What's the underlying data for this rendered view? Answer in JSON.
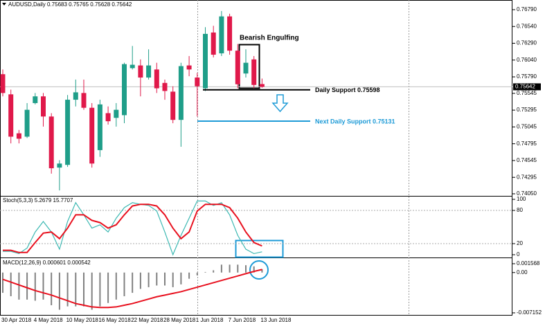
{
  "chart_data": [
    {
      "type": "candlestick",
      "title": "AUDUSD,Daily 0.75683 0.75765 0.75628 0.75642",
      "categories": [
        "30 Apr 2018",
        null,
        null,
        null,
        "4 May 2018",
        null,
        null,
        null,
        "10 May 2018",
        null,
        null,
        null,
        "16 May 2018",
        null,
        null,
        null,
        "22 May 2018",
        null,
        null,
        null,
        "28 May 2018",
        null,
        null,
        null,
        "1 Jun 2018",
        null,
        null,
        null,
        "7 Jun 2018",
        null,
        null,
        null,
        "13 Jun 2018"
      ],
      "open": [
        0.7583,
        0.7553,
        0.7495,
        0.749,
        0.754,
        0.755,
        0.752,
        0.7444,
        0.7448,
        0.7545,
        0.7555,
        0.7533,
        0.747,
        0.7525,
        0.7518,
        0.7522,
        0.7592,
        0.7596,
        0.7578,
        0.759,
        0.757,
        0.7557,
        0.7515,
        0.7596,
        0.7578,
        0.7562,
        0.7645,
        0.7614,
        0.7669,
        0.7618,
        0.7584,
        0.7605,
        0.75683
      ],
      "high": [
        0.759,
        0.756,
        0.75,
        0.754,
        0.7555,
        0.7555,
        0.7525,
        0.7455,
        0.7552,
        0.7575,
        0.7575,
        0.754,
        0.7545,
        0.7535,
        0.754,
        0.76,
        0.7625,
        0.7605,
        0.762,
        0.76,
        0.7575,
        0.7565,
        0.76,
        0.761,
        0.7585,
        0.7653,
        0.7655,
        0.7677,
        0.7673,
        0.7628,
        0.762,
        0.761,
        0.75765
      ],
      "low": [
        0.755,
        0.748,
        0.748,
        0.7488,
        0.7538,
        0.7505,
        0.7435,
        0.741,
        0.7445,
        0.7535,
        0.753,
        0.7444,
        0.746,
        0.7508,
        0.7505,
        0.751,
        0.759,
        0.755,
        0.7575,
        0.7555,
        0.7545,
        0.751,
        0.7475,
        0.758,
        0.752,
        0.7558,
        0.7608,
        0.761,
        0.7612,
        0.7562,
        0.7578,
        0.7562,
        0.75628
      ],
      "close": [
        0.7555,
        0.749,
        0.7487,
        0.753,
        0.755,
        0.752,
        0.7443,
        0.745,
        0.7545,
        0.7556,
        0.7533,
        0.745,
        0.7538,
        0.7513,
        0.753,
        0.7598,
        0.7597,
        0.7578,
        0.7596,
        0.7562,
        0.7558,
        0.7515,
        0.7595,
        0.759,
        0.7565,
        0.7643,
        0.7612,
        0.7669,
        0.7618,
        0.7568,
        0.76,
        0.7567,
        0.75642
      ],
      "up_color": "#1f9e89",
      "down_color": "#e0194a",
      "ylim": [
        0.74019,
        0.76934
      ],
      "yticks": [
        {
          "value": 0.7679,
          "label": "0.76790"
        },
        {
          "value": 0.7654,
          "label": "0.76540"
        },
        {
          "value": 0.7629,
          "label": "0.76290"
        },
        {
          "value": 0.7604,
          "label": "0.76040"
        },
        {
          "value": 0.7579,
          "label": "0.75790"
        },
        {
          "value": 0.75545,
          "label": "0.75545"
        },
        {
          "value": 0.75295,
          "label": "0.75295"
        },
        {
          "value": 0.75045,
          "label": "0.75045"
        },
        {
          "value": 0.74795,
          "label": "0.74795"
        },
        {
          "value": 0.74545,
          "label": "0.74545"
        },
        {
          "value": 0.74295,
          "label": "0.74295"
        },
        {
          "value": 0.7405,
          "label": "0.74050"
        }
      ],
      "last_price": 0.75642,
      "annotations": [
        {
          "text": "Bearish Engulfing"
        }
      ],
      "levels": [
        {
          "text": "Daily Support 0.75598",
          "value": 0.75598,
          "color": "#000000"
        },
        {
          "text": "Next Daily Support 0.75131",
          "value": 0.75131,
          "color": "#1e9bd7"
        }
      ]
    },
    {
      "type": "line",
      "title": "Stoch(5,3,3) 5.2679 15.7707",
      "series": [
        {
          "color": "#3cb8b2",
          "values": [
            6,
            6,
            2,
            12,
            41,
            60,
            41,
            10,
            60,
            94,
            72,
            48,
            54,
            41,
            66,
            85,
            94,
            91,
            89,
            79,
            41,
            0,
            35,
            66,
            97,
            97,
            89,
            94,
            72,
            35,
            10,
            2,
            5.2679
          ]
        },
        {
          "color": "#e8101e",
          "values": [
            8,
            8,
            4,
            4,
            22,
            39,
            41,
            29,
            48,
            72,
            72,
            62,
            58,
            48,
            54,
            72,
            88,
            91,
            91,
            88,
            72,
            48,
            29,
            41,
            79,
            91,
            91,
            91,
            85,
            66,
            41,
            22,
            15.7707
          ]
        }
      ],
      "ylim": [
        0,
        100
      ],
      "yticks": [
        0,
        20,
        80,
        100
      ],
      "levels": [
        20,
        80
      ]
    },
    {
      "type": "macd",
      "title": "MACD(12,26,9) 0.000601 0.000542",
      "series": [
        {
          "color": "#808080",
          "values": [
            -0.0036,
            -0.0042,
            -0.0048,
            -0.0048,
            -0.005,
            -0.0048,
            -0.0058,
            -0.0066,
            -0.006,
            -0.006,
            -0.006,
            -0.0066,
            -0.006,
            -0.0054,
            -0.0048,
            -0.0042,
            -0.0036,
            -0.0029,
            -0.0026,
            -0.0023,
            -0.0023,
            -0.0026,
            -0.0021,
            -0.0011,
            -0.0005,
            0.0001,
            0.0004,
            0.0014,
            0.0014,
            0.0014,
            0.0013,
            0.0011,
            0.000601
          ]
        },
        {
          "color": "#e8101e",
          "values": [
            -0.0012,
            -0.0017,
            -0.0022,
            -0.0027,
            -0.0032,
            -0.0036,
            -0.004,
            -0.0045,
            -0.005,
            -0.0055,
            -0.0058,
            -0.0061,
            -0.0062,
            -0.0062,
            -0.0061,
            -0.0058,
            -0.0055,
            -0.0051,
            -0.0047,
            -0.0043,
            -0.004,
            -0.0037,
            -0.0034,
            -0.003,
            -0.0026,
            -0.0022,
            -0.0018,
            -0.0014,
            -0.001,
            -0.0006,
            -0.0002,
            0.0002,
            0.000542
          ]
        }
      ],
      "ylim": [
        -0.007152,
        0.001568
      ],
      "yticks": [
        0.001568,
        {
          "value": 0,
          "label": "0.00"
        },
        -0.007152
      ]
    }
  ]
}
